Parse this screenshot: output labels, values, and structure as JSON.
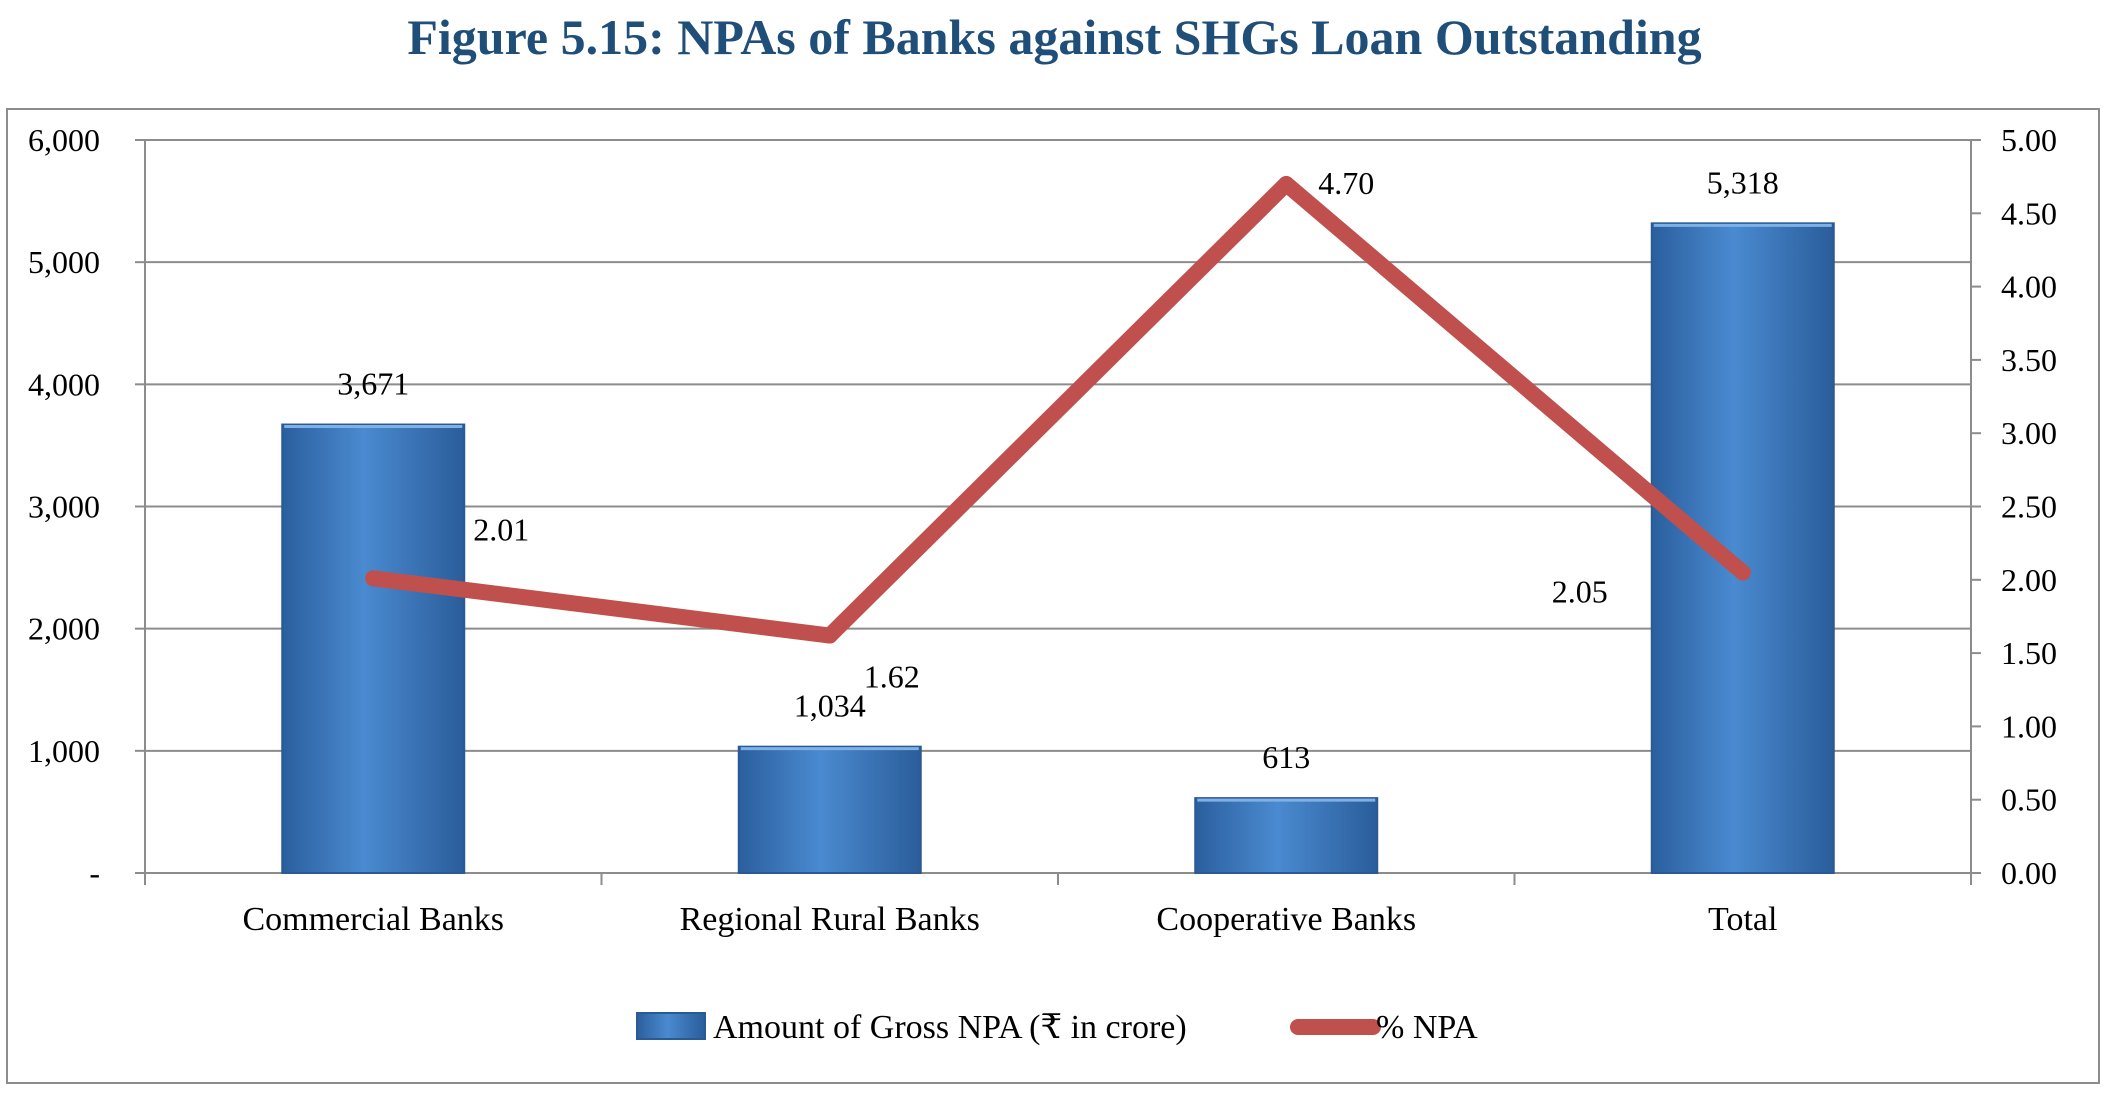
{
  "figure_title": "Figure 5.15: NPAs of Banks against SHGs Loan Outstanding",
  "chart_data": {
    "type": "bar",
    "categories": [
      "Commercial Banks",
      "Regional Rural Banks",
      "Cooperative Banks",
      "Total"
    ],
    "series": [
      {
        "name": "Amount of Gross NPA (₹ in crore)",
        "type": "bar",
        "axis": "left",
        "values": [
          3671,
          1034,
          613,
          5318
        ],
        "labels": [
          "3,671",
          "1,034",
          "613",
          "5,318"
        ],
        "color": "#3d7cc4"
      },
      {
        "name": "% NPA",
        "type": "line",
        "axis": "right",
        "values": [
          2.01,
          1.62,
          4.7,
          2.05
        ],
        "labels": [
          "2.01",
          "1.62",
          "4.70",
          "2.05"
        ],
        "color": "#c0504d"
      }
    ],
    "y_left": {
      "range": [
        0,
        6000
      ],
      "ticks": [
        0,
        1000,
        2000,
        3000,
        4000,
        5000,
        6000
      ],
      "tick_labels": [
        "-",
        "1,000",
        "2,000",
        "3,000",
        "4,000",
        "5,000",
        "6,000"
      ]
    },
    "y_right": {
      "range": [
        0,
        5
      ],
      "ticks": [
        0,
        0.5,
        1,
        1.5,
        2,
        2.5,
        3,
        3.5,
        4,
        4.5,
        5
      ],
      "tick_labels": [
        "0.00",
        "0.50",
        "1.00",
        "1.50",
        "2.00",
        "2.50",
        "3.00",
        "3.50",
        "4.00",
        "4.50",
        "5.00"
      ]
    },
    "grid": true,
    "legend_position": "bottom"
  }
}
